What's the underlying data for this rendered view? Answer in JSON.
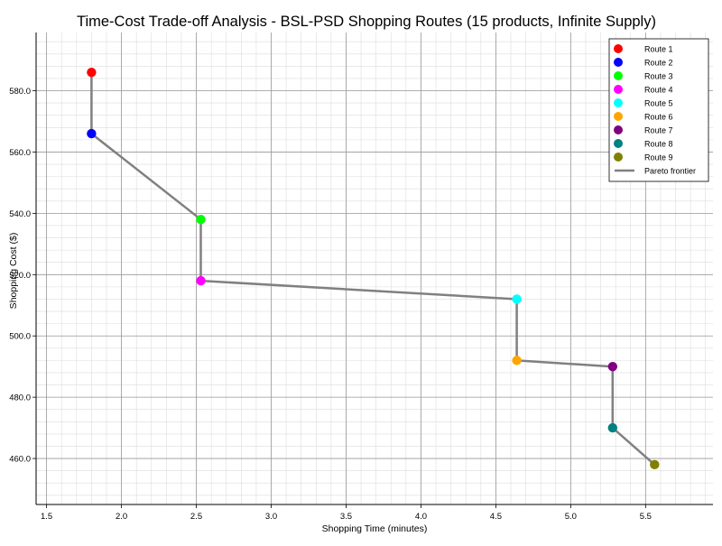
{
  "chart_data": {
    "type": "scatter",
    "title": "Time-Cost Trade-off Analysis - BSL-PSD Shopping Routes (15 products, Infinite Supply)",
    "xlabel": "Shopping Time (minutes)",
    "ylabel": "Shopping Cost ($)",
    "xlim": [
      1.43,
      5.95
    ],
    "ylim": [
      445,
      599
    ],
    "x_ticks": [
      1.5,
      2.0,
      2.5,
      3.0,
      3.5,
      4.0,
      4.5,
      5.0,
      5.5
    ],
    "x_tick_labels": [
      "1.5",
      "2.0",
      "2.5",
      "3.0",
      "3.5",
      "4.0",
      "4.5",
      "5.0",
      "5.5"
    ],
    "y_ticks": [
      460,
      480,
      500,
      520,
      540,
      560,
      580
    ],
    "y_tick_labels": [
      "460.0",
      "480.0",
      "500.0",
      "520.0",
      "540.0",
      "560.0",
      "580.0"
    ],
    "grid": true,
    "minor_grid": true,
    "legend_position": "top-right",
    "series": [
      {
        "name": "Route 1",
        "x": [
          1.8
        ],
        "y": [
          586
        ],
        "color": "#ff0000"
      },
      {
        "name": "Route 2",
        "x": [
          1.8
        ],
        "y": [
          566
        ],
        "color": "#0000ff"
      },
      {
        "name": "Route 3",
        "x": [
          2.53
        ],
        "y": [
          538
        ],
        "color": "#00ff00"
      },
      {
        "name": "Route 4",
        "x": [
          2.53
        ],
        "y": [
          518
        ],
        "color": "#ff00ff"
      },
      {
        "name": "Route 5",
        "x": [
          4.64
        ],
        "y": [
          512
        ],
        "color": "#00ffff"
      },
      {
        "name": "Route 6",
        "x": [
          4.64
        ],
        "y": [
          492
        ],
        "color": "#ffa500"
      },
      {
        "name": "Route 7",
        "x": [
          5.28
        ],
        "y": [
          490
        ],
        "color": "#800080"
      },
      {
        "name": "Route 8",
        "x": [
          5.28
        ],
        "y": [
          470
        ],
        "color": "#008080"
      },
      {
        "name": "Route 9",
        "x": [
          5.56
        ],
        "y": [
          458
        ],
        "color": "#808000"
      }
    ],
    "pareto_frontier": {
      "name": "Pareto frontier",
      "color": "#808080",
      "x": [
        1.8,
        1.8,
        2.53,
        2.53,
        4.64,
        4.64,
        5.28,
        5.28,
        5.56
      ],
      "y": [
        586,
        566,
        538,
        518,
        512,
        492,
        490,
        470,
        458
      ]
    }
  }
}
